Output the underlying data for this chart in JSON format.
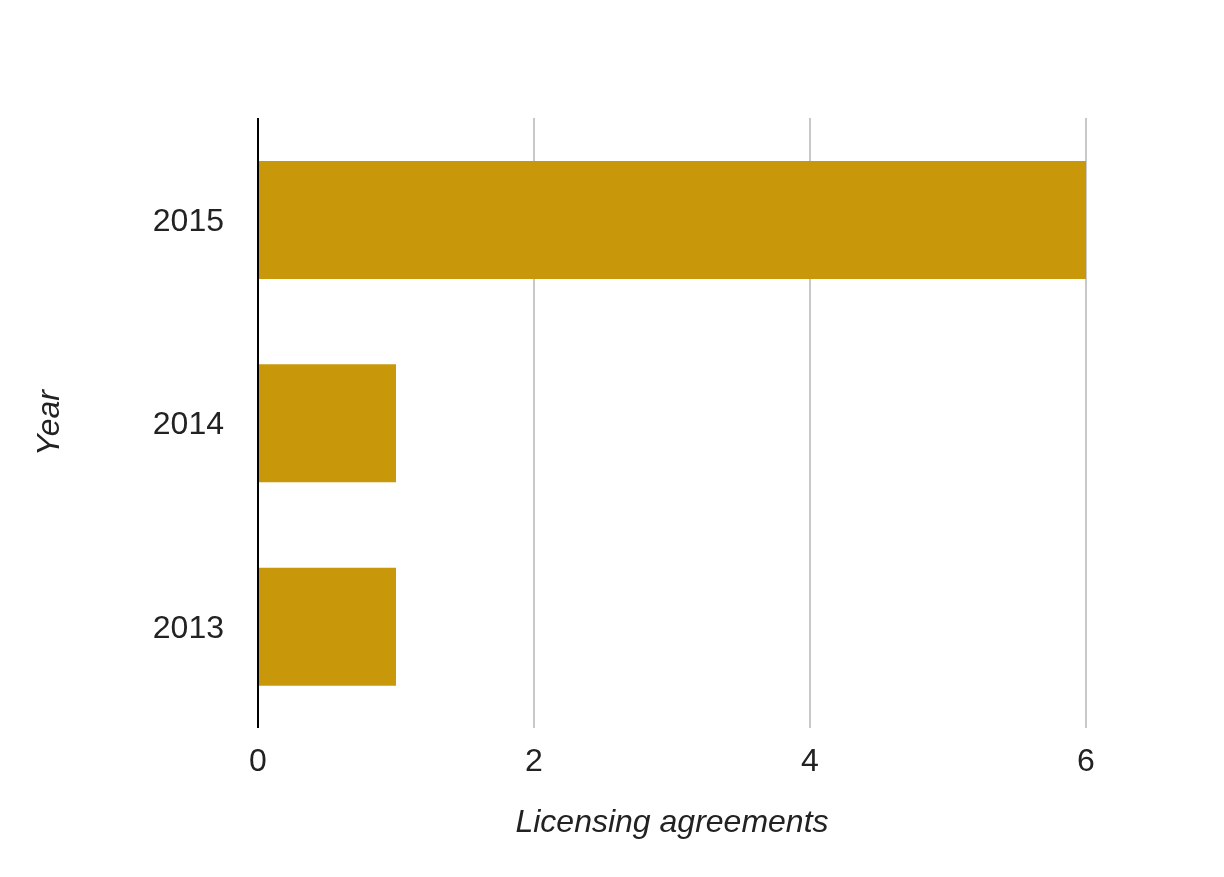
{
  "chart_data": {
    "type": "bar",
    "orientation": "horizontal",
    "xlabel": "Licensing agreements",
    "ylabel": "Year",
    "categories": [
      "2015",
      "2014",
      "2013"
    ],
    "values": [
      6,
      1,
      1
    ],
    "color": "#c8980a",
    "xlim": [
      0,
      6
    ],
    "xticks": [
      0,
      2,
      4,
      6
    ],
    "grid": "x"
  }
}
